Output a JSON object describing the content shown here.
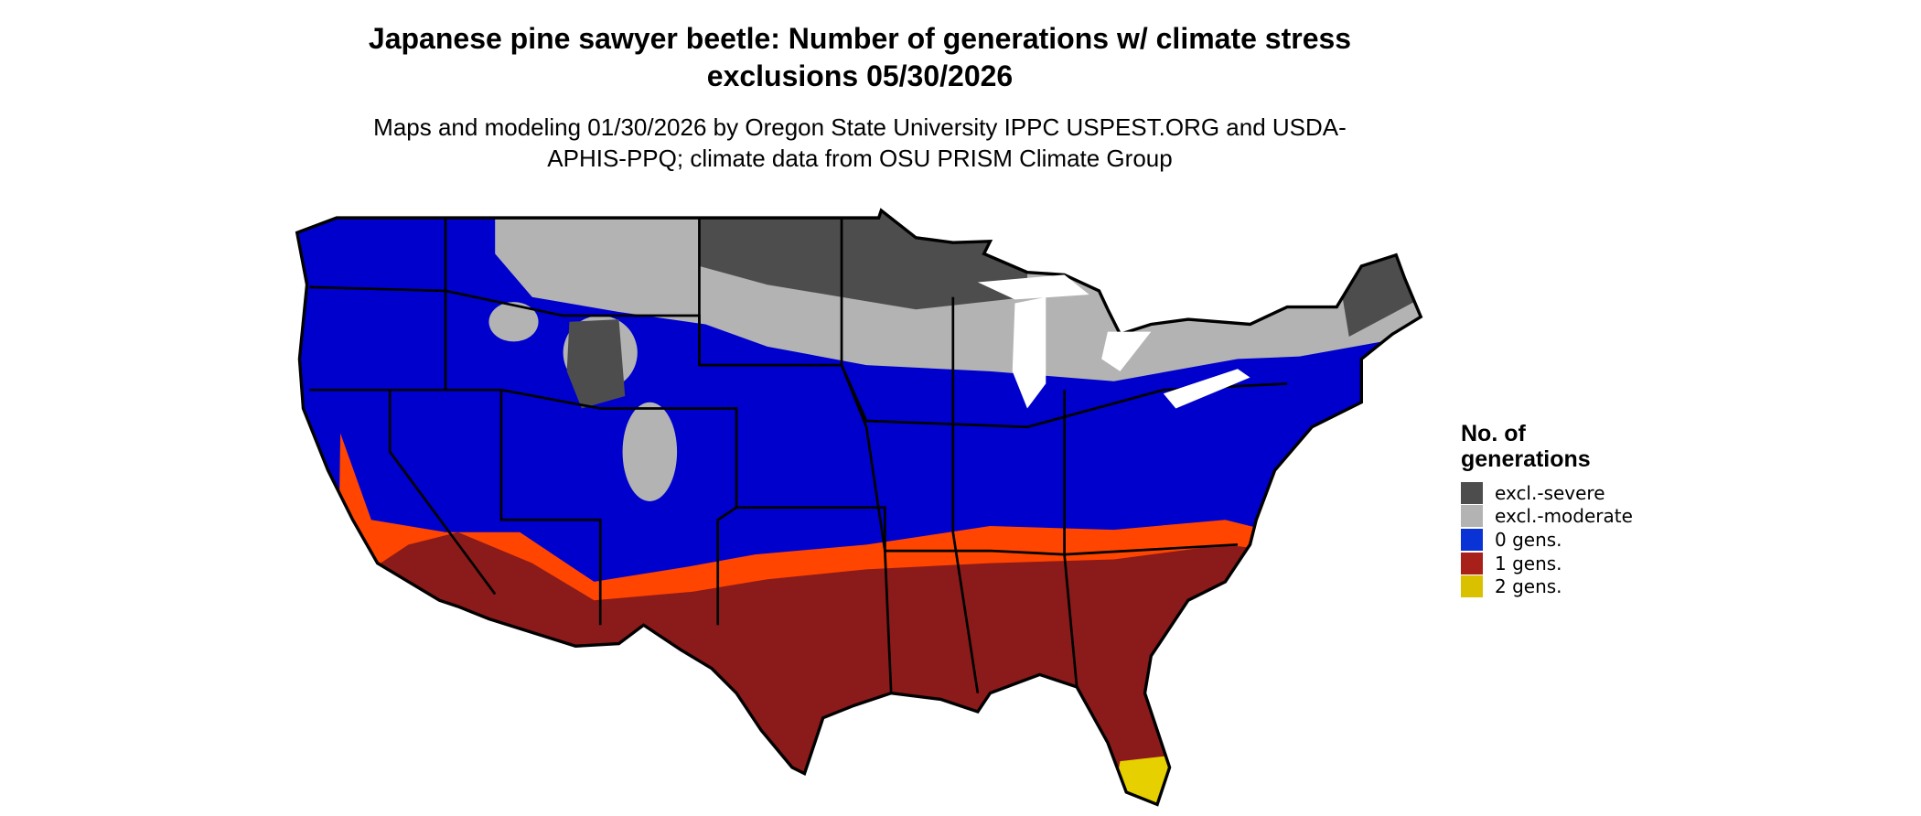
{
  "title": "Japanese pine sawyer beetle: Number of generations w/ climate stress exclusions 05/30/2026",
  "subtitle": "Maps and modeling 01/30/2026 by Oregon State University IPPC USPEST.ORG and USDA-APHIS-PPQ; climate data from OSU PRISM Climate Group",
  "legend": {
    "title": "No. of generations",
    "items": [
      {
        "label": "excl.-severe",
        "color": "#4d4d4d"
      },
      {
        "label": "excl.-moderate",
        "color": "#b3b3b3"
      },
      {
        "label": "0 gens.",
        "color": "#0a33d6"
      },
      {
        "label": "1 gens.",
        "color": "#a8201a"
      },
      {
        "label": "2 gens.",
        "color": "#d9c100"
      }
    ]
  }
}
